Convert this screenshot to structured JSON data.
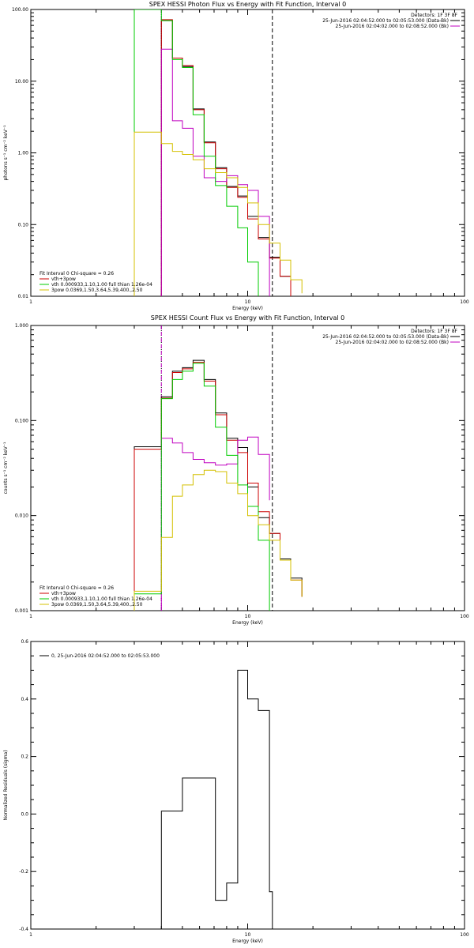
{
  "chart_data": [
    {
      "type": "line",
      "panel": "photon",
      "title": "SPEX HESSI Photon Flux vs Energy with Fit Function, Interval 0",
      "xlabel": "Energy (keV)",
      "ylabel": "photons s⁻¹ cm⁻² keV⁻¹",
      "xlim": [
        1,
        100
      ],
      "ylim": [
        0.01,
        100
      ],
      "xscale": "log",
      "yscale": "log",
      "xticks": [
        {
          "v": 1,
          "t": "1"
        },
        {
          "v": 10,
          "t": "10"
        },
        {
          "v": 100,
          "t": "100"
        }
      ],
      "yticks": [
        {
          "v": 0.01,
          "t": "0.01"
        },
        {
          "v": 0.1,
          "t": "0.10"
        },
        {
          "v": 1,
          "t": "1.00"
        },
        {
          "v": 10,
          "t": "10.00"
        },
        {
          "v": 100,
          "t": "100.00"
        }
      ],
      "vlines": [
        {
          "x": 4.0,
          "style": "dotted",
          "color": "#000000"
        },
        {
          "x": 4.0,
          "style": "dashed",
          "color": "#c000c0"
        },
        {
          "x": 13.0,
          "style": "dashed",
          "color": "#000000"
        }
      ],
      "legend_right": [
        {
          "text": "Detectors: 1F 3F 8F",
          "color": ""
        },
        {
          "text": "25-Jun-2016 02:04:52.000 to 02:05:53.000 (Data-Bk)",
          "color": "#000000"
        },
        {
          "text": "25-Jun-2016 02:04:02.000 to 02:08:52.000 (Bk)",
          "color": "#c000c0"
        }
      ],
      "legend_left": [
        {
          "text": "Fit Interval 0   Chi-square = 0.26",
          "color": ""
        },
        {
          "text": "vth+3pow",
          "color": "#cc0000"
        },
        {
          "text": "vth 0.000933,1.10,1.00  full thian 1.26e-04",
          "color": "#00cc00"
        },
        {
          "text": "3pow 0.0369,1.50,3.64,5.39,400.,2.50",
          "color": "#d4c000"
        }
      ],
      "series": [
        {
          "color": "#000000",
          "edges": [
            4.0,
            4.5,
            5.0,
            5.6,
            6.3,
            7.1,
            8.0,
            9.0,
            10.0,
            11.2,
            12.6,
            14.1,
            15.8
          ],
          "values": [
            70,
            21,
            16,
            4.1,
            1.42,
            0.62,
            0.34,
            0.25,
            0.13,
            0.066,
            0.035,
            0.019
          ]
        },
        {
          "color": "#cc0000",
          "edges": [
            4.0,
            4.5,
            5.0,
            5.6,
            6.3,
            7.1,
            8.0,
            9.0,
            10.0,
            11.2,
            12.6,
            14.1,
            15.8
          ],
          "values": [
            72,
            21,
            16.5,
            4.0,
            1.38,
            0.6,
            0.33,
            0.24,
            0.12,
            0.063,
            0.034,
            0.019
          ]
        },
        {
          "color": "#c000c0",
          "edges": [
            4.0,
            4.5,
            5.0,
            5.6,
            6.3,
            7.1,
            8.0,
            9.0,
            10.0,
            11.2,
            12.6
          ],
          "values": [
            28,
            2.8,
            2.2,
            0.9,
            0.45,
            0.4,
            0.48,
            0.36,
            0.3,
            0.13
          ]
        },
        {
          "color": "#00cc00",
          "edges": [
            3.0,
            4.0,
            4.5,
            5.0,
            5.6,
            6.3,
            7.1,
            8.0,
            9.0,
            10.0,
            11.2
          ],
          "values": [
            100,
            70,
            20,
            15.5,
            3.4,
            0.9,
            0.35,
            0.18,
            0.09,
            0.03
          ]
        },
        {
          "color": "#d4c000",
          "edges": [
            3.0,
            4.0,
            4.5,
            5.0,
            5.6,
            6.3,
            7.1,
            8.0,
            9.0,
            10.0,
            11.2,
            12.6,
            14.1,
            15.8,
            17.8
          ],
          "values": [
            1.95,
            1.35,
            1.05,
            0.95,
            0.8,
            0.6,
            0.53,
            0.45,
            0.33,
            0.2,
            0.1,
            0.055,
            0.032,
            0.017,
            0.011
          ]
        }
      ]
    },
    {
      "type": "line",
      "panel": "count",
      "title": "SPEX HESSI Count Flux vs Energy with Fit Function, Interval 0",
      "xlabel": "Energy (keV)",
      "ylabel": "counts s⁻¹ cm⁻² keV⁻¹",
      "xlim": [
        1,
        100
      ],
      "ylim": [
        0.001,
        1
      ],
      "xscale": "log",
      "yscale": "log",
      "xticks": [
        {
          "v": 1,
          "t": "1"
        },
        {
          "v": 10,
          "t": "10"
        },
        {
          "v": 100,
          "t": "100"
        }
      ],
      "yticks": [
        {
          "v": 0.001,
          "t": "0.001"
        },
        {
          "v": 0.01,
          "t": "0.010"
        },
        {
          "v": 0.1,
          "t": "0.100"
        },
        {
          "v": 1,
          "t": "1.000"
        }
      ],
      "vlines": [
        {
          "x": 4.0,
          "style": "dotted",
          "color": "#000000"
        },
        {
          "x": 4.0,
          "style": "dashed",
          "color": "#c000c0"
        },
        {
          "x": 13.0,
          "style": "dashed",
          "color": "#000000"
        }
      ],
      "legend_right": [
        {
          "text": "Detectors: 1F 3F 8F",
          "color": ""
        },
        {
          "text": "25-Jun-2016 02:04:52.000 to 02:05:53.000 (Data-Bk)",
          "color": "#000000"
        },
        {
          "text": "25-Jun-2016 02:04:02.000 to 02:08:52.000 (Bk)",
          "color": "#c000c0"
        }
      ],
      "legend_left": [
        {
          "text": "Fit Interval 0   Chi-square = 0.26",
          "color": ""
        },
        {
          "text": "vth+3pow",
          "color": "#cc0000"
        },
        {
          "text": "vth 0.000933,1.10,1.00  full thian 1.26e-04",
          "color": "#00cc00"
        },
        {
          "text": "3pow 0.0369,1.50,3.64,5.39,400.,2.50",
          "color": "#d4c000"
        }
      ],
      "series": [
        {
          "color": "#000000",
          "edges": [
            3.0,
            4.0,
            4.5,
            5.0,
            5.6,
            6.3,
            7.1,
            8.0,
            9.0,
            10.0,
            11.2,
            12.6,
            14.1,
            15.8,
            17.8
          ],
          "values": [
            0.053,
            0.178,
            0.33,
            0.36,
            0.43,
            0.27,
            0.12,
            0.065,
            0.052,
            0.02,
            0.0095,
            0.0065,
            0.0035,
            0.0022,
            0.0014
          ]
        },
        {
          "color": "#cc0000",
          "edges": [
            3.0,
            4.0,
            4.5,
            5.0,
            5.6,
            6.3,
            7.1,
            8.0,
            9.0,
            10.0,
            11.2,
            12.6,
            14.1,
            15.8,
            17.8
          ],
          "values": [
            0.05,
            0.172,
            0.32,
            0.35,
            0.41,
            0.26,
            0.115,
            0.062,
            0.046,
            0.022,
            0.011,
            0.0065,
            0.0034,
            0.0021,
            0.0014
          ]
        },
        {
          "color": "#c000c0",
          "edges": [
            4.0,
            4.5,
            5.0,
            5.6,
            6.3,
            7.1,
            8.0,
            9.0,
            10.0,
            11.2,
            12.6
          ],
          "values": [
            0.065,
            0.058,
            0.046,
            0.039,
            0.036,
            0.034,
            0.035,
            0.062,
            0.067,
            0.044,
            0.0145
          ]
        },
        {
          "color": "#00cc00",
          "edges": [
            3.0,
            4.0,
            4.5,
            5.0,
            5.6,
            6.3,
            7.1,
            8.0,
            9.0,
            10.0,
            11.2,
            12.6
          ],
          "values": [
            0.0015,
            0.17,
            0.27,
            0.33,
            0.4,
            0.23,
            0.085,
            0.043,
            0.021,
            0.0125,
            0.0055
          ]
        },
        {
          "color": "#d4c000",
          "edges": [
            3.0,
            4.0,
            4.5,
            5.0,
            5.6,
            6.3,
            7.1,
            8.0,
            9.0,
            10.0,
            11.2,
            12.6,
            14.1,
            15.8,
            17.8
          ],
          "values": [
            0.0016,
            0.0059,
            0.016,
            0.021,
            0.027,
            0.03,
            0.029,
            0.022,
            0.017,
            0.01,
            0.008,
            0.0055,
            0.0034,
            0.0021,
            0.0014
          ]
        }
      ]
    },
    {
      "type": "line",
      "panel": "residuals",
      "title": "",
      "xlabel": "Energy (keV)",
      "ylabel": "Normalized Residuals (sigma)",
      "xlim": [
        1,
        100
      ],
      "ylim": [
        -0.4,
        0.6
      ],
      "xscale": "log",
      "yscale": "linear",
      "xticks": [
        {
          "v": 1,
          "t": "1"
        },
        {
          "v": 10,
          "t": "10"
        },
        {
          "v": 100,
          "t": "100"
        }
      ],
      "yticks": [
        {
          "v": -0.4,
          "t": "-0.4"
        },
        {
          "v": -0.2,
          "t": "-0.2"
        },
        {
          "v": 0.0,
          "t": "0.0"
        },
        {
          "v": 0.2,
          "t": "0.2"
        },
        {
          "v": 0.4,
          "t": "0.4"
        },
        {
          "v": 0.6,
          "t": "0.6"
        }
      ],
      "vlines": [],
      "legend_right": [],
      "legend_left": [
        {
          "text": "0, 25-Jun-2016 02:04:52.000 to 02:05:53.000",
          "color": "#000000"
        }
      ],
      "series": [
        {
          "color": "#000000",
          "edges": [
            4.0,
            4.5,
            5.0,
            5.6,
            6.3,
            7.1,
            8.0,
            9.0,
            10.0,
            11.2,
            12.6,
            13.0
          ],
          "values": [
            0.01,
            0.01,
            0.125,
            0.125,
            0.125,
            -0.3,
            -0.24,
            0.5,
            0.4,
            0.36,
            -0.27
          ]
        }
      ]
    }
  ]
}
